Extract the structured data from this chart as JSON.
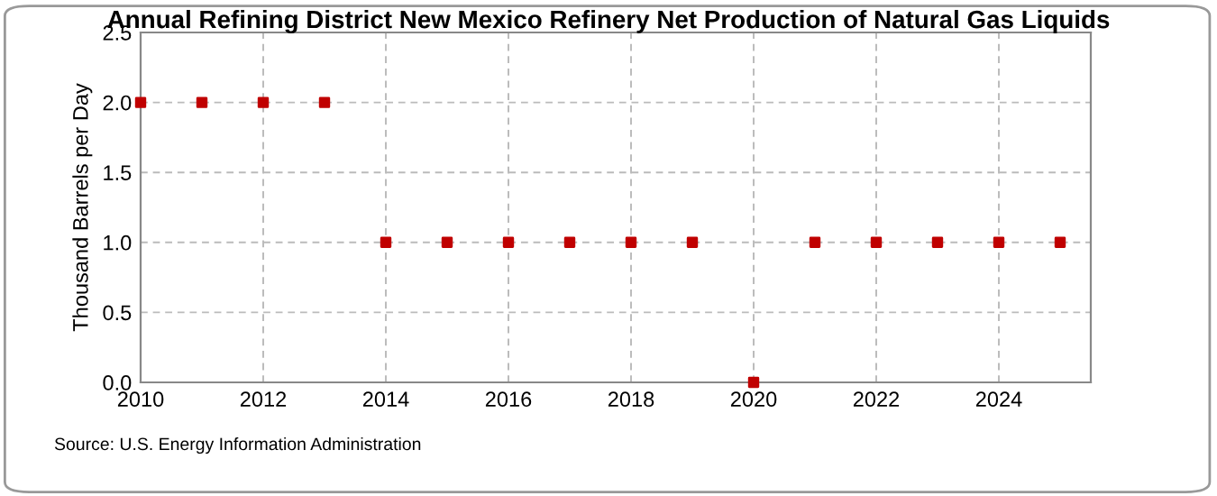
{
  "chart_data": {
    "type": "scatter",
    "title": "Annual Refining District New Mexico Refinery Net Production of Natural Gas Liquids",
    "ylabel": "Thousand Barrels per Day",
    "annotations": [
      "Source: U.S. Energy Information Administration"
    ],
    "x": [
      2010,
      2011,
      2012,
      2013,
      2014,
      2015,
      2016,
      2017,
      2018,
      2019,
      2020,
      2021,
      2022,
      2023,
      2024,
      2025
    ],
    "series": [
      {
        "color": "#c00000",
        "values": [
          2,
          2,
          2,
          2,
          1,
          1,
          1,
          1,
          1,
          1,
          0,
          1,
          1,
          1,
          1,
          1
        ]
      }
    ],
    "marker": "square",
    "xlim": [
      2010,
      2025.5
    ],
    "xticks": [
      2010,
      2012,
      2014,
      2016,
      2018,
      2020,
      2022,
      2024
    ],
    "ylim": [
      0,
      2.5
    ],
    "yticks": [
      {
        "value": 0,
        "label": "0.0"
      },
      {
        "value": 0.5,
        "label": "0.5"
      },
      {
        "value": 1,
        "label": "1.0"
      },
      {
        "value": 1.5,
        "label": "1.5"
      },
      {
        "value": 2,
        "label": "2.0"
      },
      {
        "value": 2.5,
        "label": "2.5"
      }
    ],
    "grid": true
  }
}
